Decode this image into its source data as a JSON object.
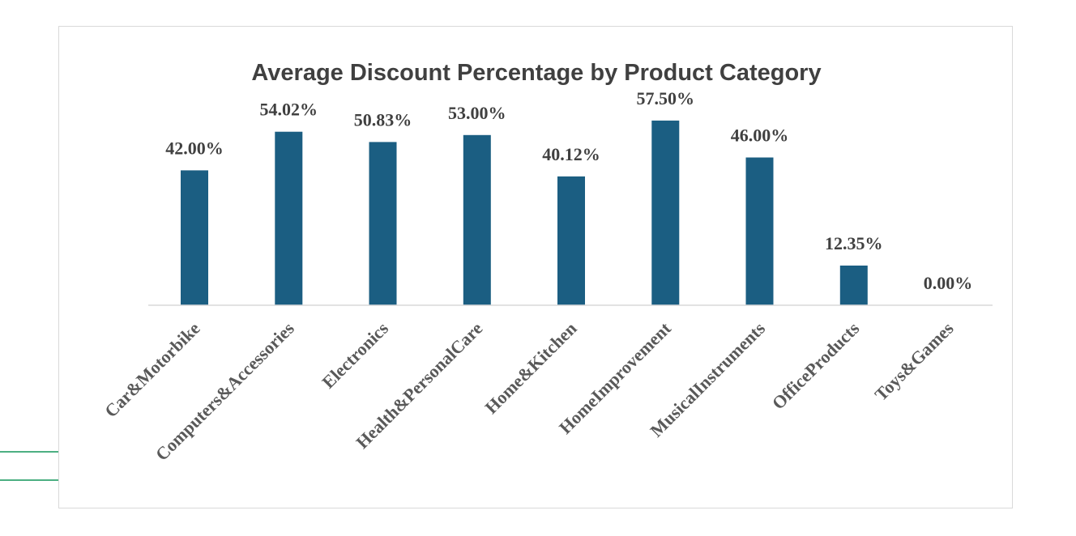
{
  "colors": {
    "bar": "#1b5e82",
    "axis_line": "#d9d9d9",
    "accent_line": "#4caf82"
  },
  "chart_data": {
    "type": "bar",
    "title": "Average Discount Percentage by Product Category",
    "xlabel": "",
    "ylabel": "",
    "categories": [
      "Car&Motorbike",
      "Computers&Accessories",
      "Electronics",
      "Health&PersonalCare",
      "Home&Kitchen",
      "HomeImprovement",
      "MusicalInstruments",
      "OfficeProducts",
      "Toys&Games"
    ],
    "values": [
      42.0,
      54.02,
      50.83,
      53.0,
      40.12,
      57.5,
      46.0,
      12.35,
      0.0
    ],
    "data_labels": [
      "42.00%",
      "54.02%",
      "50.83%",
      "53.00%",
      "40.12%",
      "57.50%",
      "46.00%",
      "12.35%",
      "0.00%"
    ],
    "ylim": [
      0,
      60
    ],
    "grid": false,
    "legend": "none"
  }
}
